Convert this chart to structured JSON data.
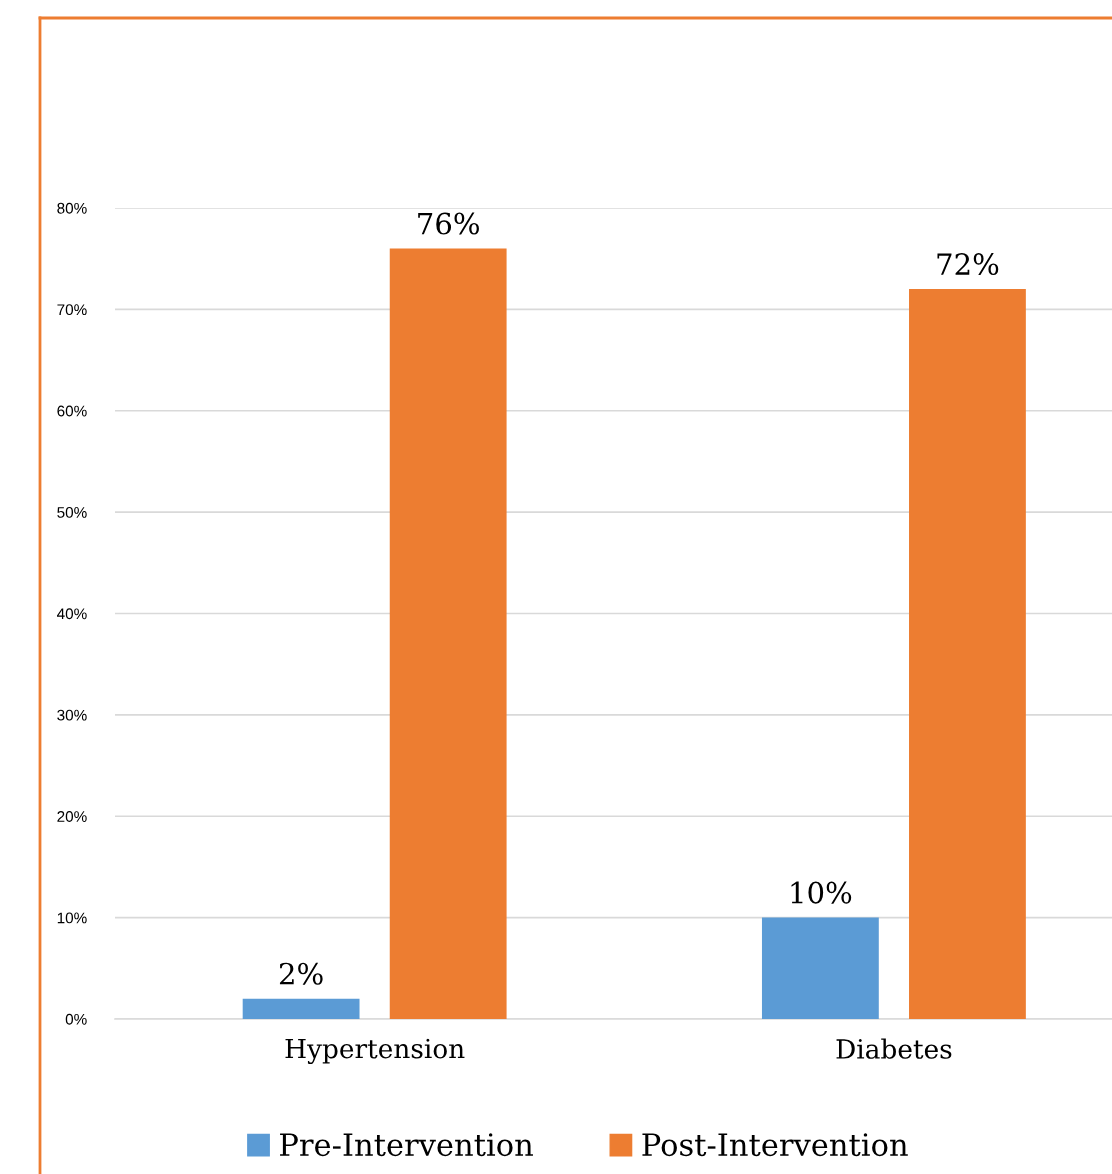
{
  "chart_data": {
    "type": "bar",
    "categories": [
      "Hypertension",
      "Diabetes"
    ],
    "series": [
      {
        "name": "Pre-Intervention",
        "color": "#5b9bd5",
        "values": [
          2,
          10
        ]
      },
      {
        "name": "Post-Intervention",
        "color": "#ed7d31",
        "values": [
          76,
          72
        ]
      }
    ],
    "value_labels": [
      [
        "2%",
        "10%"
      ],
      [
        "76%",
        "72%"
      ]
    ],
    "ylim": [
      0,
      80
    ],
    "yticks": [
      {
        "value": 0,
        "label": "0%"
      },
      {
        "value": 10,
        "label": "10%"
      },
      {
        "value": 20,
        "label": "20%"
      },
      {
        "value": 30,
        "label": "30%"
      },
      {
        "value": 40,
        "label": "40%"
      },
      {
        "value": 50,
        "label": "50%"
      },
      {
        "value": 60,
        "label": "60%"
      },
      {
        "value": 70,
        "label": "70%"
      },
      {
        "value": 80,
        "label": "80%"
      }
    ],
    "grid": "y",
    "legend": "bottom"
  }
}
